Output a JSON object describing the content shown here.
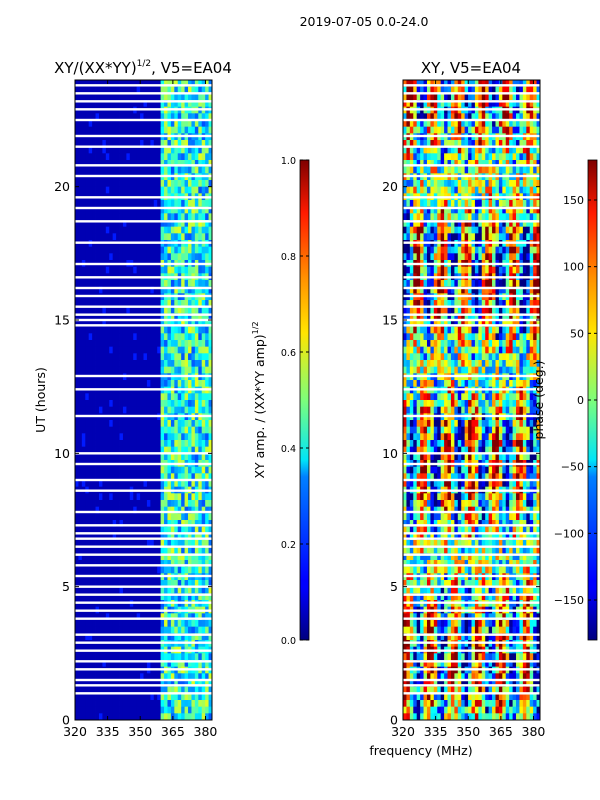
{
  "figure_title": "2019-07-05 0.0-24.0",
  "shared_xlabel": "frequency (MHz)",
  "chart_data": [
    {
      "type": "heatmap",
      "title": "XY/(XX*YY)",
      "title_suffix": ", V5=EA04",
      "title_exponent": "1/2",
      "xlabel": "",
      "ylabel": "UT (hours)",
      "xlim": [
        320,
        383
      ],
      "ylim": [
        0,
        24
      ],
      "xticks": [
        320,
        335,
        350,
        365,
        380
      ],
      "yticks": [
        0,
        5,
        10,
        15,
        20
      ],
      "colormap": "jet",
      "colorbar": {
        "label": "XY amp. / (XX*YY amp)",
        "label_exponent": "1/2",
        "range": [
          0.0,
          1.0
        ],
        "ticks": [
          "0.0",
          "0.2",
          "0.4",
          "0.6",
          "0.8",
          "1.0"
        ],
        "tick_values": [
          0.0,
          0.2,
          0.4,
          0.6,
          0.8,
          1.0
        ]
      },
      "description_values": {
        "background_level": 0.05,
        "band_start_mhz": 360,
        "band_level_range": [
          0.2,
          0.6
        ]
      },
      "flagged_hours": [
        23.8,
        23.5,
        23.2,
        22.9,
        22.5,
        21.9,
        21.5,
        20.8,
        20.4,
        19.6,
        19.2,
        18.7,
        17.9,
        17.1,
        16.6,
        16.2,
        15.9,
        15.5,
        15.2,
        15.0,
        14.8,
        12.9,
        12.4,
        11.4,
        10.0,
        9.6,
        9.0,
        8.6,
        7.8,
        7.3,
        7.0,
        6.8,
        6.5,
        6.2,
        5.8,
        5.4,
        5.0,
        4.7,
        4.4,
        4.1,
        3.8,
        3.2,
        2.9,
        2.6,
        2.2,
        1.9,
        1.5,
        1.3,
        1.0
      ]
    },
    {
      "type": "heatmap",
      "title": "XY",
      "title_suffix": ", V5=EA04",
      "title_exponent": "",
      "xlabel": "frequency (MHz)",
      "ylabel": "",
      "xlim": [
        320,
        383
      ],
      "ylim": [
        0,
        24
      ],
      "xticks": [
        320,
        335,
        350,
        365,
        380
      ],
      "yticks": [
        0,
        5,
        10,
        15,
        20
      ],
      "colormap": "jet",
      "colorbar": {
        "label": "phase (deg.)",
        "label_exponent": "",
        "range": [
          -180,
          180
        ],
        "ticks": [
          "−150",
          "−100",
          "−50",
          "0",
          "50",
          "100",
          "150"
        ],
        "tick_values": [
          -150,
          -100,
          -50,
          0,
          50,
          100,
          150
        ]
      },
      "flagged_hours": [
        23.8,
        23.5,
        23.2,
        22.9,
        22.5,
        21.9,
        21.5,
        20.8,
        20.4,
        19.6,
        19.2,
        18.7,
        17.9,
        17.1,
        16.6,
        16.2,
        15.9,
        15.5,
        15.2,
        15.0,
        14.8,
        12.9,
        12.4,
        11.4,
        10.0,
        9.6,
        9.0,
        8.6,
        7.8,
        7.3,
        7.0,
        6.8,
        6.5,
        6.2,
        5.8,
        5.4,
        5.0,
        4.7,
        4.4,
        4.1,
        3.8,
        3.2,
        2.9,
        2.6,
        2.2,
        1.9,
        1.5,
        1.3,
        1.0
      ]
    }
  ]
}
